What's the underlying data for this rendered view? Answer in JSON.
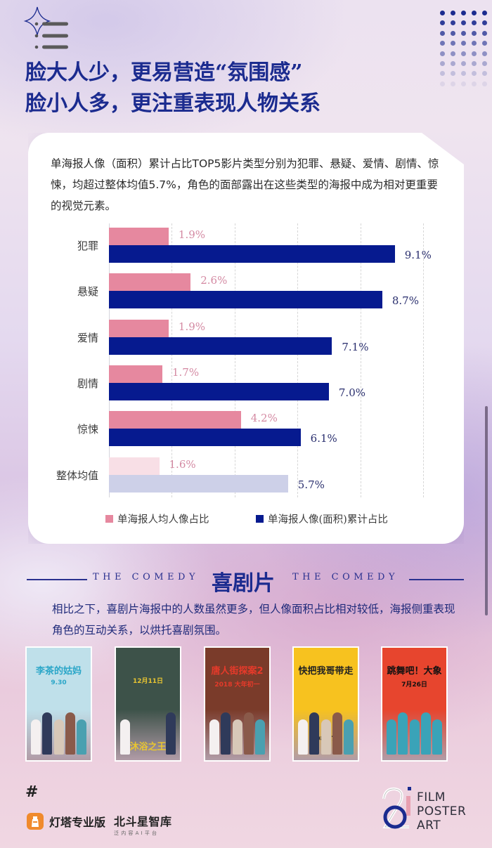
{
  "header": {
    "icons": [
      "sparkle-star-icon",
      "list-icon"
    ],
    "headline_line1": "脸大人少，更易营造“氛围感”",
    "headline_line2": "脸小人多，更注重表现人物关系"
  },
  "card": {
    "description": "单海报人像（面积）累计占比TOP5影片类型分别为犯罪、悬疑、爱情、剧情、惊悚，均超过整体均值5.7%，角色的面部露出在这些类型的海报中成为相对更重要的视觉元素。"
  },
  "chart_data": {
    "type": "bar",
    "orientation": "horizontal",
    "title": "",
    "categories": [
      "犯罪",
      "悬疑",
      "爱情",
      "剧情",
      "惊悚",
      "整体均值"
    ],
    "series": [
      {
        "name": "单海报人均人像占比",
        "color": "#e6889f",
        "values": [
          1.9,
          2.6,
          1.9,
          1.7,
          4.2,
          1.6
        ],
        "labels": [
          "1.9%",
          "2.6%",
          "1.9%",
          "1.7%",
          "4.2%",
          "1.6%"
        ]
      },
      {
        "name": "单海报人像(面积)累计占比",
        "color": "#061a8f",
        "values": [
          9.1,
          8.7,
          7.1,
          7.0,
          6.1,
          5.7
        ],
        "labels": [
          "9.1%",
          "8.7%",
          "7.1%",
          "7.0%",
          "6.1%",
          "5.7%"
        ]
      }
    ],
    "highlight_colors": {
      "average_pink": "#f8dfe6",
      "average_navy": "#cdd0e8"
    },
    "xlabel": "",
    "ylabel": "",
    "xlim": [
      0,
      10
    ],
    "grid": true,
    "grid_step": 2,
    "legend_position": "bottom",
    "unit": "%"
  },
  "comedy": {
    "en_left": "THE COMEDY",
    "title": "喜剧片",
    "en_right": "THE COMEDY",
    "description": "相比之下，喜剧片海报中的人数虽然更多，但人像面积占比相对较低，海报侧重表现角色的互动关系，以烘托喜剧氛围。",
    "posters": [
      {
        "title": "李茶的姑妈",
        "date": "9.30",
        "bg": "#bfe0ea",
        "accent": "#2aa6c8"
      },
      {
        "title": "沐浴之王",
        "date": "12月11日",
        "bg": "#3d5249",
        "accent": "#e8c531"
      },
      {
        "title": "唐人街探案2",
        "date": "2018 大年初一",
        "bg": "#7a3b2a",
        "accent": "#e63a2a"
      },
      {
        "title": "快把我哥带走",
        "date": "08/17",
        "bg": "#f7c21f",
        "accent": "#222222"
      },
      {
        "title": "跳舞吧！大象",
        "date": "7月26日",
        "bg": "#e7452e",
        "accent": "#111111"
      }
    ]
  },
  "footer": {
    "hash": "#",
    "brand1": "灯塔专业版",
    "brand2": "北斗星智库",
    "brand2_sub": "泛内容AI平台",
    "logo_lines": [
      "FILM",
      "POSTER",
      "ART"
    ]
  },
  "colors": {
    "headline": "#1b2b8f",
    "pink": "#e6889f",
    "navy": "#061a8f"
  }
}
